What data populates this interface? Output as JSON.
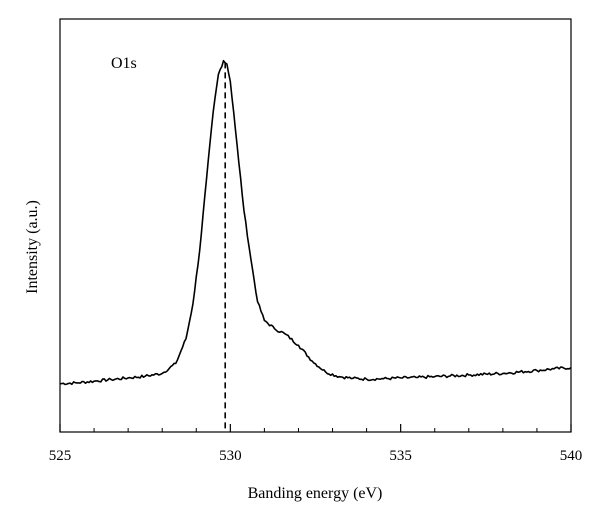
{
  "chart_data": {
    "type": "line",
    "title": "",
    "xlabel": "Banding energy (eV)",
    "ylabel": "Intensity (a.u.)",
    "xlim": [
      525,
      540
    ],
    "xticks": [
      525,
      530,
      535,
      540
    ],
    "xtick_labels": [
      "525",
      "530",
      "535",
      "540"
    ],
    "minor_xticks": [
      526,
      527,
      528,
      529,
      531,
      532,
      533,
      534,
      536,
      537,
      538,
      539
    ],
    "ylim": [
      0,
      100
    ],
    "y_ticks_shown": false,
    "grid": false,
    "legend": "none",
    "annotation": "O1s",
    "peak_marker": {
      "x": 529.85,
      "style": "dashed-vertical"
    },
    "series": [
      {
        "x": [
          525.0,
          525.5,
          526.0,
          526.5,
          527.0,
          527.5,
          528.0,
          528.4,
          528.7,
          528.9,
          529.1,
          529.3,
          529.5,
          529.65,
          529.8,
          529.9,
          530.0,
          530.1,
          530.25,
          530.4,
          530.6,
          530.8,
          531.0,
          531.3,
          531.6,
          532.0,
          532.4,
          532.8,
          533.2,
          533.6,
          534.0,
          534.5,
          535.0,
          535.5,
          536.0,
          537.0,
          538.0,
          539.0,
          539.5,
          540.0
        ],
        "y": [
          11.7,
          11.9,
          12.3,
          12.7,
          13.1,
          13.5,
          14.2,
          16.6,
          22.6,
          31.0,
          44.0,
          61.2,
          77.7,
          86.6,
          89.9,
          89.1,
          84.9,
          77.4,
          65.3,
          53.5,
          42.0,
          31.5,
          27.0,
          25.0,
          23.8,
          21.0,
          17.2,
          14.5,
          13.4,
          13.0,
          12.8,
          12.9,
          13.1,
          13.2,
          13.4,
          13.8,
          14.2,
          14.9,
          15.3,
          15.6
        ]
      }
    ]
  }
}
